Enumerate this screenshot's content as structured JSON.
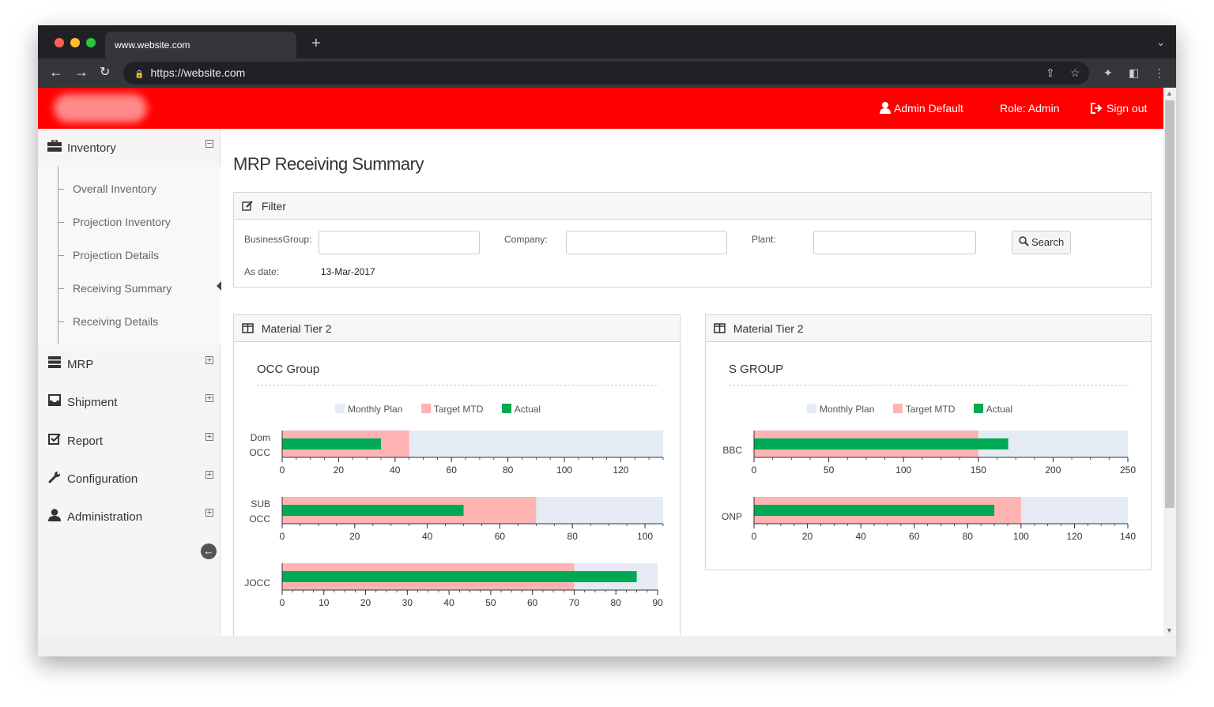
{
  "browser": {
    "tab_title": "www.website.com",
    "url": "https://website.com",
    "new_tab_symbol": "+",
    "tab_menu_symbol": "⌄"
  },
  "header": {
    "user": "Admin Default",
    "role": "Role: Admin",
    "signout": "Sign out",
    "accent": "#ff0000"
  },
  "sidebar": {
    "inventory": {
      "label": "Inventory",
      "icon": "briefcase-icon",
      "toggle": "⊟"
    },
    "subitems": [
      "Overall Inventory",
      "Projection Inventory",
      "Projection Details",
      "Receiving Summary",
      "Receiving Details"
    ],
    "menus": [
      {
        "label": "MRP",
        "icon": "server-icon"
      },
      {
        "label": "Shipment",
        "icon": "inbox-icon"
      },
      {
        "label": "Report",
        "icon": "checkbox-icon"
      },
      {
        "label": "Configuration",
        "icon": "wrench-icon"
      },
      {
        "label": "Administration",
        "icon": "user-icon"
      }
    ],
    "expand_symbol": "⊞"
  },
  "page": {
    "title": "MRP Receiving Summary"
  },
  "filter": {
    "heading": "Filter",
    "business_group_label": "BusinessGroup:",
    "company_label": "Company:",
    "plant_label": "Plant:",
    "search_label": "Search",
    "asdate_label": "As date:",
    "asdate_value": "13-Mar-2017",
    "business_group_value": "",
    "company_value": "",
    "plant_value": ""
  },
  "panels": [
    {
      "heading": "Material Tier 2",
      "group": "OCC Group"
    },
    {
      "heading": "Material Tier 2",
      "group": "S GROUP"
    }
  ],
  "legend": {
    "monthly_plan": "Monthly Plan",
    "target_mtd": "Target MTD",
    "actual": "Actual",
    "colors": {
      "monthly_plan": "#e4ebf3",
      "target_mtd": "#ffb3b3",
      "actual": "#00aa55"
    }
  },
  "chart_data": [
    {
      "type": "bar",
      "title": "OCC Group",
      "orientation": "horizontal",
      "series_names": [
        "Monthly Plan",
        "Target MTD",
        "Actual"
      ],
      "bars": [
        {
          "category": "Dom OCC",
          "monthly_plan": 135,
          "target_mtd": 45,
          "actual": 35,
          "xlim": [
            0,
            135
          ],
          "ticks": [
            0,
            20,
            40,
            60,
            80,
            100,
            120
          ]
        },
        {
          "category": "SUB OCC",
          "monthly_plan": 105,
          "target_mtd": 70,
          "actual": 50,
          "xlim": [
            0,
            105
          ],
          "ticks": [
            0,
            20,
            40,
            60,
            80,
            100
          ]
        },
        {
          "category": "JOCC",
          "monthly_plan": 90,
          "target_mtd": 70,
          "actual": 85,
          "xlim": [
            0,
            90
          ],
          "ticks": [
            0,
            10,
            20,
            30,
            40,
            50,
            60,
            70,
            80,
            90
          ]
        }
      ]
    },
    {
      "type": "bar",
      "title": "S GROUP",
      "orientation": "horizontal",
      "series_names": [
        "Monthly Plan",
        "Target MTD",
        "Actual"
      ],
      "bars": [
        {
          "category": "BBC",
          "monthly_plan": 250,
          "target_mtd": 150,
          "actual": 170,
          "xlim": [
            0,
            250
          ],
          "ticks": [
            0,
            50,
            100,
            150,
            200,
            250
          ]
        },
        {
          "category": "ONP",
          "monthly_plan": 140,
          "target_mtd": 100,
          "actual": 90,
          "xlim": [
            0,
            140
          ],
          "ticks": [
            0,
            20,
            40,
            60,
            80,
            100,
            120,
            140
          ]
        }
      ]
    }
  ]
}
